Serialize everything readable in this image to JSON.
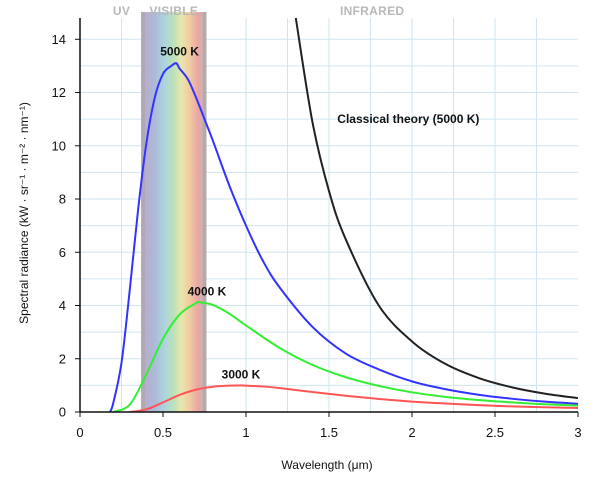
{
  "chart_data": {
    "type": "line",
    "title": "",
    "xlabel": "Wavelength (μm)",
    "ylabel": "Spectral radiance (kW · sr⁻¹ · m⁻² · nm⁻¹)",
    "xlim": [
      0,
      3
    ],
    "ylim": [
      0,
      14.8
    ],
    "xticks": [
      0,
      0.5,
      1,
      1.5,
      2,
      2.5,
      3
    ],
    "xtick_labels": [
      "0",
      "0.5",
      "1",
      "1.5",
      "2",
      "2.5",
      "3"
    ],
    "yticks": [
      0,
      2,
      4,
      6,
      8,
      10,
      12,
      14
    ],
    "ytick_labels": [
      "0",
      "2",
      "4",
      "6",
      "8",
      "10",
      "12",
      "14"
    ],
    "grid": true,
    "regions": [
      {
        "label": "UV",
        "x_range": [
          0.12,
          0.38
        ]
      },
      {
        "label": "VISIBLE",
        "x_range": [
          0.38,
          0.75
        ]
      },
      {
        "label": "INFRARED",
        "x_range": [
          0.75,
          3.0
        ]
      }
    ],
    "series": [
      {
        "name": "5000 K",
        "color": "#3333ff",
        "x": [
          0.18,
          0.2,
          0.25,
          0.3,
          0.35,
          0.4,
          0.45,
          0.5,
          0.55,
          0.58,
          0.6,
          0.65,
          0.7,
          0.75,
          0.8,
          0.9,
          1.0,
          1.1,
          1.2,
          1.4,
          1.6,
          1.8,
          2.0,
          2.2,
          2.4,
          2.6,
          2.8,
          3.0
        ],
        "values": [
          0.0,
          0.33,
          1.85,
          4.6,
          7.6,
          10.1,
          11.8,
          12.7,
          13.0,
          13.1,
          12.9,
          12.5,
          11.8,
          11.0,
          10.2,
          8.5,
          7.0,
          5.7,
          4.7,
          3.2,
          2.2,
          1.6,
          1.15,
          0.86,
          0.65,
          0.5,
          0.39,
          0.31
        ],
        "label": "5000 K"
      },
      {
        "name": "4000 K",
        "color": "#33ee33",
        "x": [
          0.2,
          0.3,
          0.4,
          0.5,
          0.6,
          0.7,
          0.725,
          0.8,
          0.9,
          1.0,
          1.2,
          1.4,
          1.6,
          1.8,
          2.0,
          2.2,
          2.4,
          2.6,
          2.8,
          3.0
        ],
        "values": [
          0.0,
          0.28,
          1.42,
          2.75,
          3.66,
          4.09,
          4.12,
          4.02,
          3.69,
          3.25,
          2.42,
          1.77,
          1.31,
          0.98,
          0.74,
          0.57,
          0.45,
          0.36,
          0.29,
          0.24
        ],
        "label": "4000 K"
      },
      {
        "name": "3000 K",
        "color": "#ff5555",
        "x": [
          0.3,
          0.4,
          0.5,
          0.6,
          0.7,
          0.8,
          0.9,
          0.97,
          1.0,
          1.1,
          1.2,
          1.4,
          1.6,
          1.8,
          2.0,
          2.2,
          2.4,
          2.6,
          2.8,
          3.0
        ],
        "values": [
          0.0,
          0.1,
          0.36,
          0.64,
          0.84,
          0.95,
          0.99,
          1.0,
          0.99,
          0.96,
          0.9,
          0.75,
          0.61,
          0.49,
          0.39,
          0.32,
          0.26,
          0.21,
          0.18,
          0.15
        ],
        "label": "3000 K"
      },
      {
        "name": "Classical theory (5000 K)",
        "color": "#222222",
        "x": [
          1.3,
          1.4,
          1.5,
          1.6,
          1.8,
          2.0,
          2.2,
          2.4,
          2.6,
          2.8,
          3.0
        ],
        "values": [
          14.8,
          10.9,
          8.3,
          6.5,
          4.0,
          2.65,
          1.81,
          1.28,
          0.93,
          0.69,
          0.52
        ],
        "label": "Classical theory (5000 K)"
      }
    ]
  }
}
